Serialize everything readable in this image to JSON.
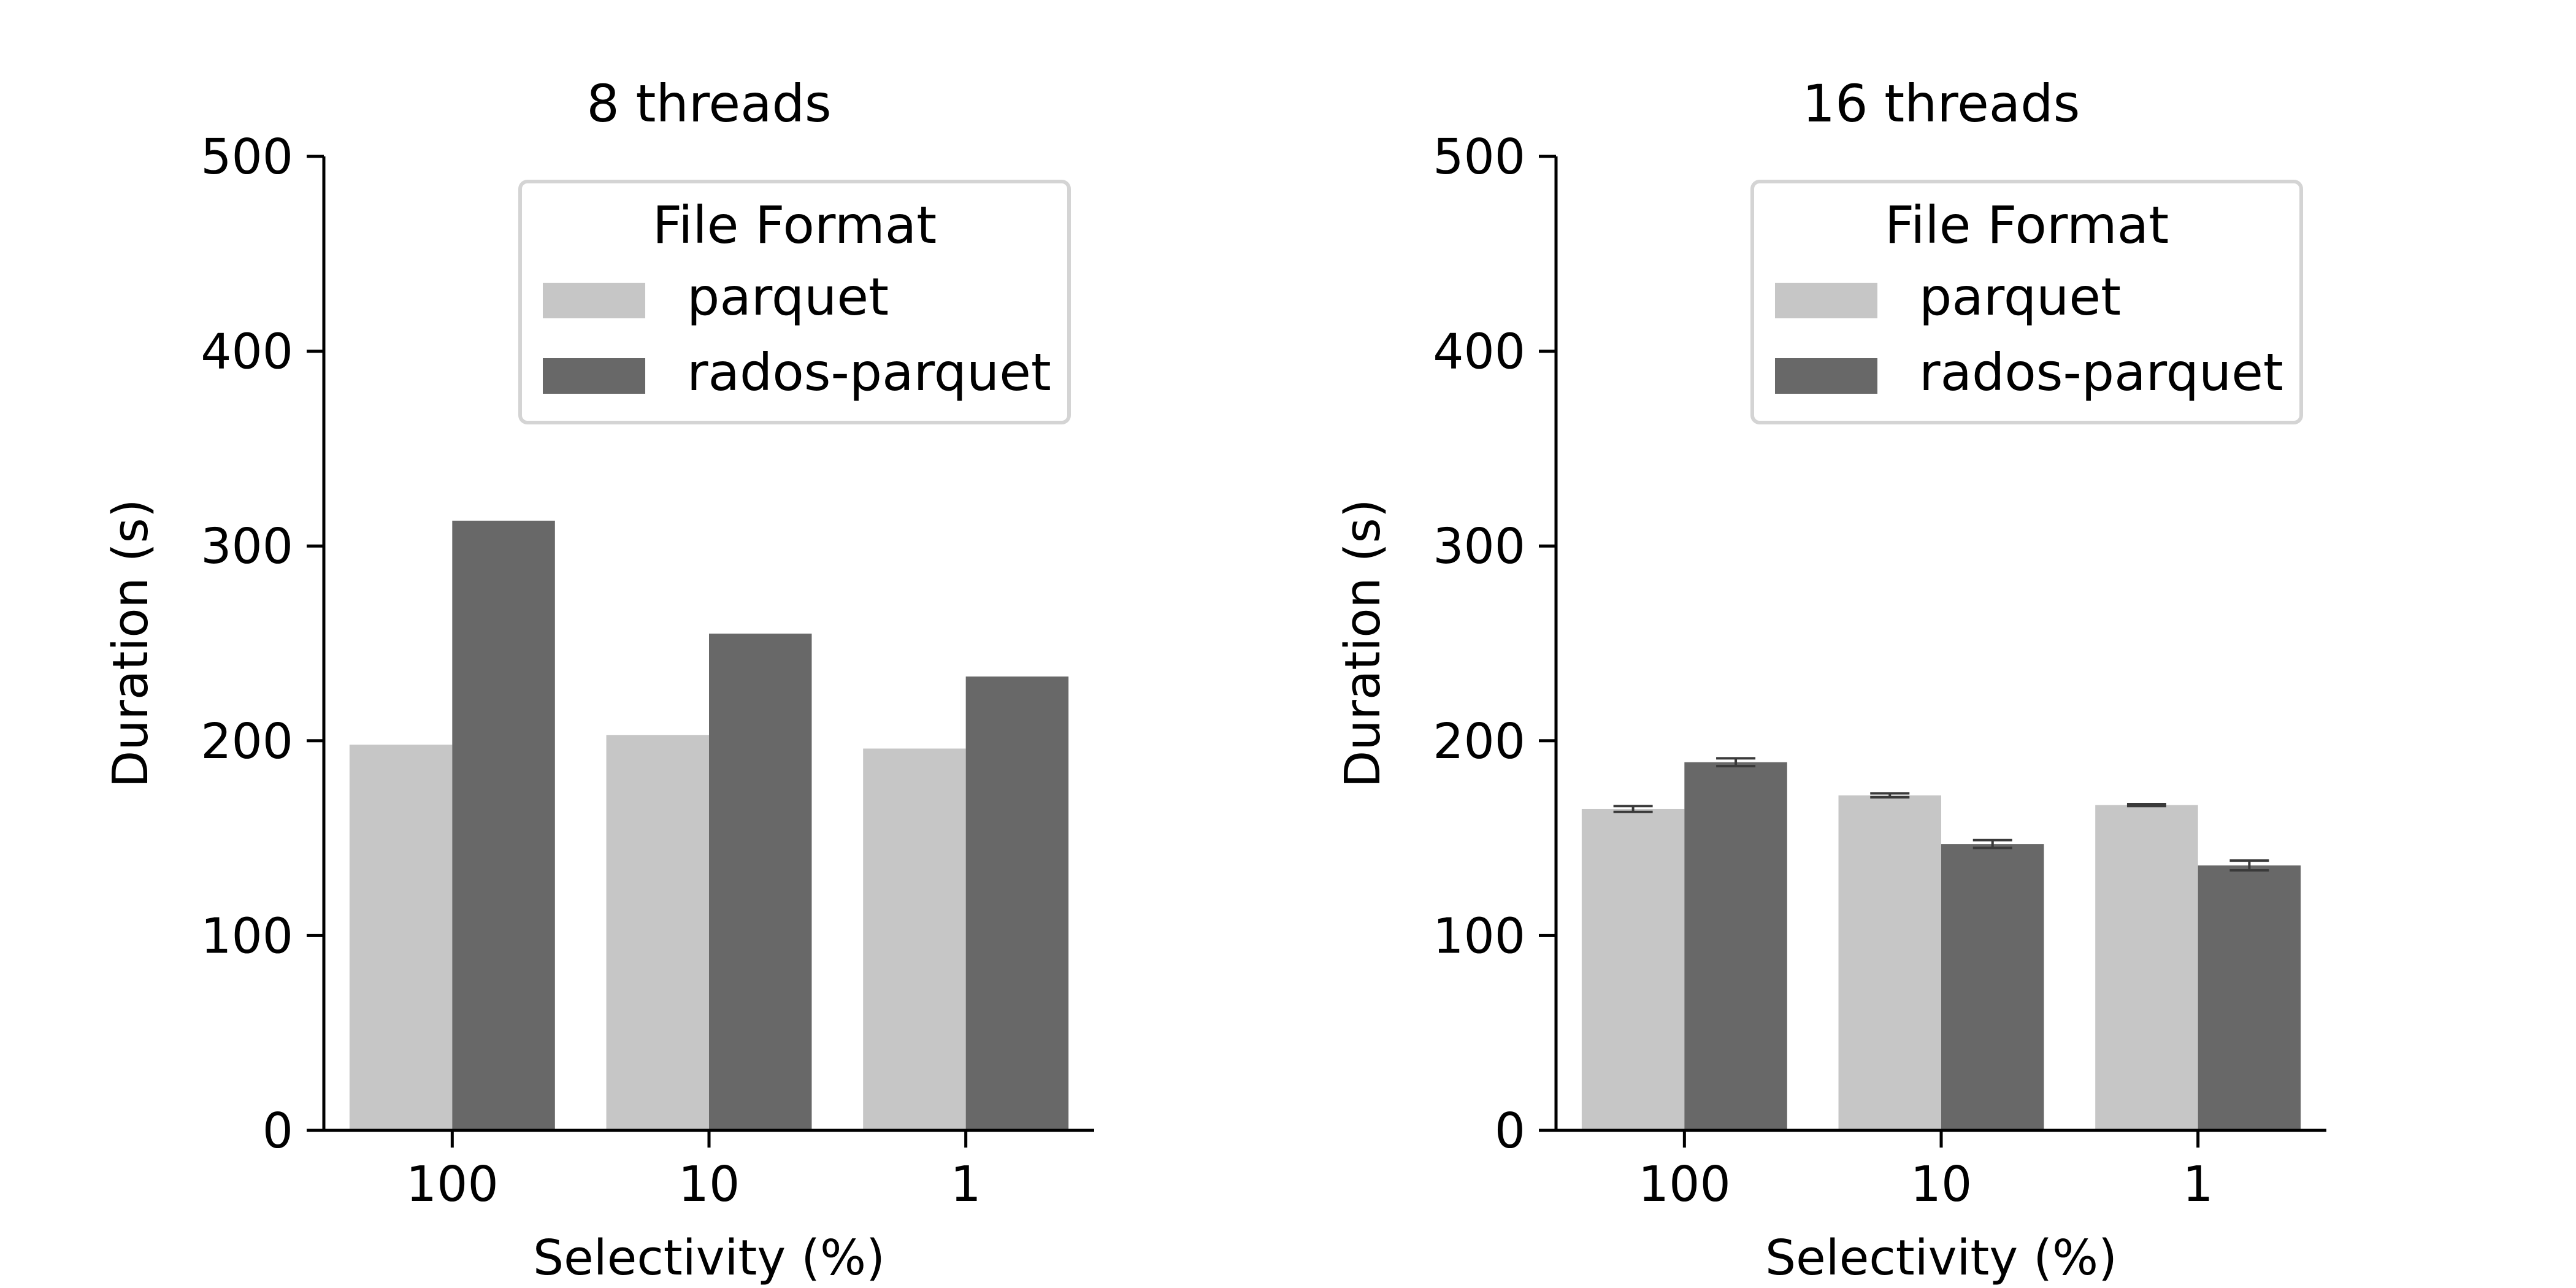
{
  "chart_data": [
    {
      "type": "bar",
      "title": "8 threads",
      "xlabel": "Selectivity (%)",
      "ylabel": "Duration (s)",
      "categories": [
        "100",
        "10",
        "1"
      ],
      "ylim": [
        0,
        500
      ],
      "yticks": [
        0,
        100,
        200,
        300,
        400,
        500
      ],
      "legend": {
        "title": "File Format",
        "position": "top-right"
      },
      "series": [
        {
          "name": "parquet",
          "values": [
            198,
            203,
            196
          ],
          "error": [
            null,
            null,
            null
          ]
        },
        {
          "name": "rados-parquet",
          "values": [
            313,
            255,
            233
          ],
          "error": [
            null,
            null,
            null
          ]
        }
      ]
    },
    {
      "type": "bar",
      "title": "16 threads",
      "xlabel": "Selectivity (%)",
      "ylabel": "Duration (s)",
      "categories": [
        "100",
        "10",
        "1"
      ],
      "ylim": [
        0,
        500
      ],
      "yticks": [
        0,
        100,
        200,
        300,
        400,
        500
      ],
      "legend": {
        "title": "File Format",
        "position": "top-right"
      },
      "series": [
        {
          "name": "parquet",
          "values": [
            165,
            172,
            167
          ],
          "error": [
            1.5,
            1,
            0.5
          ]
        },
        {
          "name": "rados-parquet",
          "values": [
            189,
            147,
            136
          ],
          "error": [
            2,
            2,
            2.5
          ]
        }
      ]
    }
  ],
  "colors": {
    "parquet": "#c6c6c6",
    "rados-parquet": "#686868",
    "axis": "#000000",
    "legend_border": "#d4d4d4",
    "errorbar": "#3a3a3a"
  }
}
